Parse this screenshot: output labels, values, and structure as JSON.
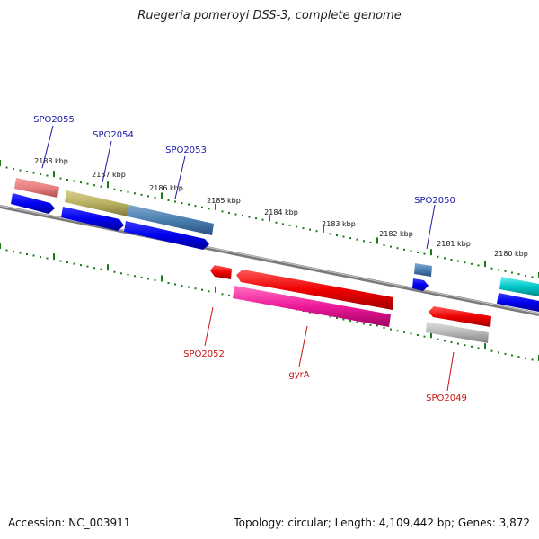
{
  "title": "Ruegeria pomeroyi DSS-3, complete genome",
  "footer": {
    "accession": "Accession: NC_003911",
    "summary": "Topology: circular; Length: 4,109,442 bp; Genes: 3,872"
  },
  "scale_labels": [
    "2188 kbp",
    "2187 kbp",
    "2186 kbp",
    "2185 kbp",
    "2184 kbp",
    "2183 kbp",
    "2182 kbp",
    "2181 kbp",
    "2180 kbp"
  ],
  "genes_forward": [
    {
      "name": "SPO2055",
      "color": "#e88080"
    },
    {
      "name": "SPO2054",
      "color": "#b8b060"
    },
    {
      "name": "SPO2053",
      "color": "#4a7fb0"
    },
    {
      "name": "SPO2050",
      "color": "#4a7fb0"
    }
  ],
  "genes_reverse": [
    {
      "name": "SPO2052",
      "color": "#ee0000"
    },
    {
      "name": "gyrA",
      "color": "#ee0000"
    },
    {
      "name": "SPO2049",
      "color": "#ee0000"
    }
  ],
  "colors": {
    "forward_label": "#1a1aaa",
    "reverse_label": "#cc1111",
    "cds_forward": "#0000ee",
    "tick": "#1a7a1a",
    "backbone": "#808080",
    "cyan_feature": "#00c8c8",
    "magenta_feature": "#ee1a9a",
    "gray_feature": "#b0b0b0"
  }
}
